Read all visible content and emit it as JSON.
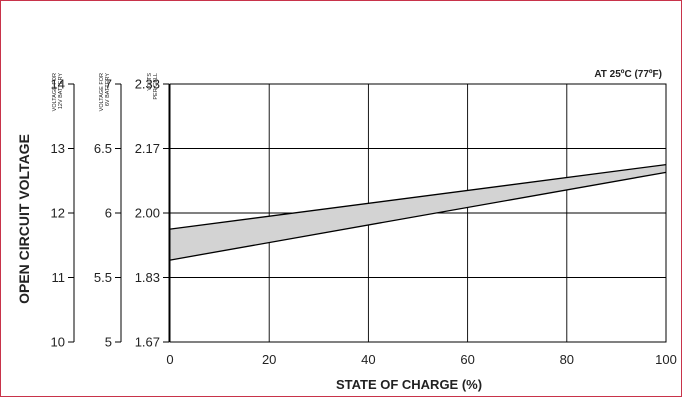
{
  "chart_data": {
    "type": "area",
    "title": "",
    "condition_note": "AT 25ºC (77ºF)",
    "xlabel": "STATE OF CHARGE (%)",
    "ylabel": "OPEN CIRCUIT VOLTAGE",
    "xlim": [
      0,
      100
    ],
    "x_ticks": [
      "0",
      "20",
      "40",
      "60",
      "80",
      "100"
    ],
    "y_axes": [
      {
        "header": [
          "VOLTAGE FOR",
          "12V BATTERY"
        ],
        "ticks": [
          "14",
          "13",
          "12",
          "11",
          "10"
        ],
        "range": [
          10,
          14
        ]
      },
      {
        "header": [
          "VOLTAGE FOR",
          "6V BATTERY"
        ],
        "ticks": [
          "7",
          "6.5",
          "6",
          "5.5",
          "5"
        ],
        "range": [
          5,
          7
        ]
      },
      {
        "header": [
          "VOLTS",
          "PER CELL"
        ],
        "ticks": [
          "2.33",
          "2.17",
          "2.00",
          "1.83",
          "1.67"
        ],
        "range": [
          1.67,
          2.33
        ]
      }
    ],
    "grid": true,
    "band": {
      "x": [
        0,
        100
      ],
      "upper_12v": [
        11.75,
        12.75
      ],
      "lower_12v": [
        11.27,
        12.63
      ],
      "fill_color": "#d3d3d3"
    },
    "colors": {
      "border": "#c8334a",
      "line": "#000000",
      "grid": "#000000"
    }
  }
}
